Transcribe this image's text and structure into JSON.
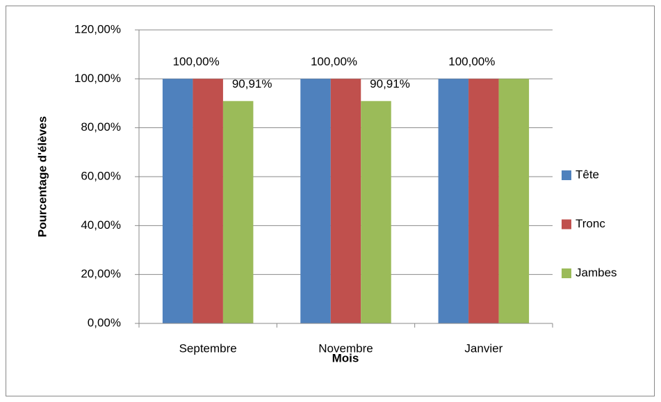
{
  "chart_data": {
    "type": "bar",
    "x_label": "Mois",
    "y_label": "Pourcentage d'élèves",
    "categories": [
      "Septembre",
      "Novembre",
      "Janvier"
    ],
    "series": [
      {
        "name": "Tête",
        "color": "#4f81bd",
        "values": [
          100,
          100,
          100
        ]
      },
      {
        "name": "Tronc",
        "color": "#c0504d",
        "values": [
          100,
          100,
          100
        ],
        "value_labels": [
          "100,00%",
          "100,00%",
          "100,00%"
        ]
      },
      {
        "name": "Jambes",
        "color": "#9bbb59",
        "values": [
          90.91,
          90.91,
          100
        ],
        "value_labels": [
          "90,91%",
          "90,91%",
          null
        ]
      }
    ],
    "ylim": [
      0,
      120
    ],
    "yticks": [
      {
        "value": 0,
        "label": "0,00%"
      },
      {
        "value": 20,
        "label": "20,00%"
      },
      {
        "value": 40,
        "label": "40,00%"
      },
      {
        "value": 60,
        "label": "60,00%"
      },
      {
        "value": 80,
        "label": "80,00%"
      },
      {
        "value": 100,
        "label": "100,00%"
      },
      {
        "value": 120,
        "label": "120,00%"
      }
    ],
    "grid": true,
    "legend": "right"
  }
}
